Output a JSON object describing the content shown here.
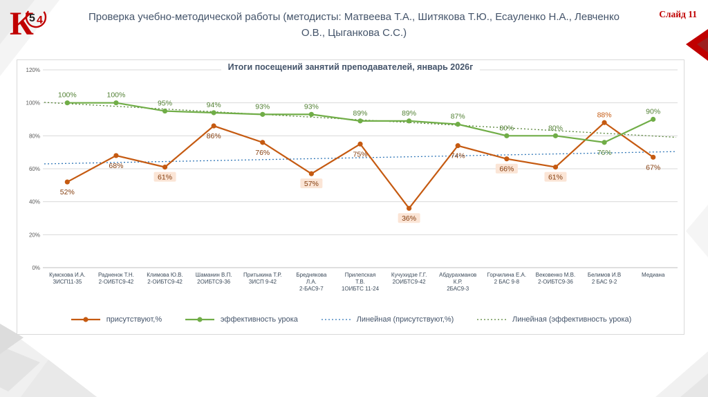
{
  "colors": {
    "accent_red": "#C00000",
    "header_text": "#44546A",
    "series_present": "#C55A11",
    "series_effect": "#70AD47",
    "trend_present": "#2E75B6",
    "trend_effect": "#548235",
    "highlight_bg": "#FBE5D6"
  },
  "logo": {
    "k": "К",
    "five": "5",
    "four": "4"
  },
  "header": {
    "title": "Проверка  учебно-методической  работы (методисты: Матвеева Т.А., Шитякова Т.Ю.,  Есауленко Н.А., Левченко О.В., Цыганкова С.С.)",
    "slide_number": "Слайд 11"
  },
  "chart_data": {
    "type": "line",
    "title": "Итоги посещений занятий  преподавателей, январь 2026г",
    "ylim": [
      0,
      120
    ],
    "yticks": [
      {
        "v": 0,
        "label": "0%"
      },
      {
        "v": 20,
        "label": "20%"
      },
      {
        "v": 40,
        "label": "40%"
      },
      {
        "v": 60,
        "label": "60%"
      },
      {
        "v": 80,
        "label": "80%"
      },
      {
        "v": 100,
        "label": "100%"
      },
      {
        "v": 120,
        "label": "120%"
      }
    ],
    "value_suffix": "%",
    "grid": true,
    "legend_position": "bottom",
    "highlight_bg": "#FBE5D6",
    "categories": [
      {
        "lines": [
          "Кумскова И.А.",
          "ЗИСП11-35"
        ]
      },
      {
        "lines": [
          "Радненок Т.Н.",
          "2-ОИБТС9-42"
        ]
      },
      {
        "lines": [
          "Климова Ю.В.",
          "2-ОИБТС9-42"
        ]
      },
      {
        "lines": [
          "Шаманин В.П.",
          "2ОИБТС9-36"
        ]
      },
      {
        "lines": [
          "Притыкина Т.Р.",
          "ЗИСП 9-42"
        ]
      },
      {
        "lines": [
          "Бреднякова",
          "Л.А.",
          "2-БАС9-7"
        ]
      },
      {
        "lines": [
          "Прилепская",
          "Т.В.",
          "1ОИБТС 11-24"
        ]
      },
      {
        "lines": [
          "Кучухидзе Г.Г.",
          "2ОИБТС9-42"
        ]
      },
      {
        "lines": [
          "Абдурахманов",
          "К.Р.",
          "2БАС9-3"
        ]
      },
      {
        "lines": [
          "Горчилина Е.А.",
          "2 БАС 9-8"
        ]
      },
      {
        "lines": [
          "Вековенко М.В.",
          "2-ОИБТС9-36"
        ]
      },
      {
        "lines": [
          "Белимов И.В",
          "2 БАС 9-2"
        ]
      },
      {
        "lines": [
          "Медиана"
        ]
      }
    ],
    "series": [
      {
        "name": "присутствуют,%",
        "color": "#C55A11",
        "label_color": "#843C0C",
        "points": [
          {
            "v": 52,
            "side": "below"
          },
          {
            "v": 68,
            "side": "below"
          },
          {
            "v": 61,
            "side": "below",
            "hl": true
          },
          {
            "v": 86,
            "side": "below"
          },
          {
            "v": 76,
            "side": "below"
          },
          {
            "v": 57,
            "side": "below",
            "hl": true
          },
          {
            "v": 75,
            "side": "below"
          },
          {
            "v": 36,
            "side": "below",
            "hl": true
          },
          {
            "v": 74,
            "side": "below"
          },
          {
            "v": 66,
            "side": "below",
            "hl": true
          },
          {
            "v": 61,
            "side": "below",
            "hl": true
          },
          {
            "v": 88,
            "side": "above",
            "color": "#C55A11"
          },
          {
            "v": 67,
            "side": "below"
          }
        ]
      },
      {
        "name": "эффективность урока",
        "color": "#70AD47",
        "label_color": "#538135",
        "points": [
          {
            "v": 100,
            "side": "above"
          },
          {
            "v": 100,
            "side": "above"
          },
          {
            "v": 95,
            "side": "above"
          },
          {
            "v": 94,
            "side": "above"
          },
          {
            "v": 93,
            "side": "above"
          },
          {
            "v": 93,
            "side": "above"
          },
          {
            "v": 89,
            "side": "above"
          },
          {
            "v": 89,
            "side": "above"
          },
          {
            "v": 87,
            "side": "above"
          },
          {
            "v": 80,
            "side": "above"
          },
          {
            "v": 80,
            "side": "above"
          },
          {
            "v": 76,
            "side": "below"
          },
          {
            "v": 90,
            "side": "above"
          }
        ]
      }
    ],
    "trendlines": [
      {
        "series": 0,
        "color": "#2E75B6",
        "label": "Линейная (присутствуют,%)"
      },
      {
        "series": 1,
        "color": "#548235",
        "label": "Линейная (эффективность урока)"
      }
    ],
    "legend": [
      {
        "label": "присутствуют,%",
        "type": "line",
        "color": "#C55A11"
      },
      {
        "label": "эффективность урока",
        "type": "line",
        "color": "#70AD47"
      },
      {
        "label": "Линейная (присутствуют,%)",
        "type": "dotted",
        "color": "#2E75B6"
      },
      {
        "label": "Линейная (эффективность урока)",
        "type": "dotted",
        "color": "#548235"
      }
    ]
  }
}
